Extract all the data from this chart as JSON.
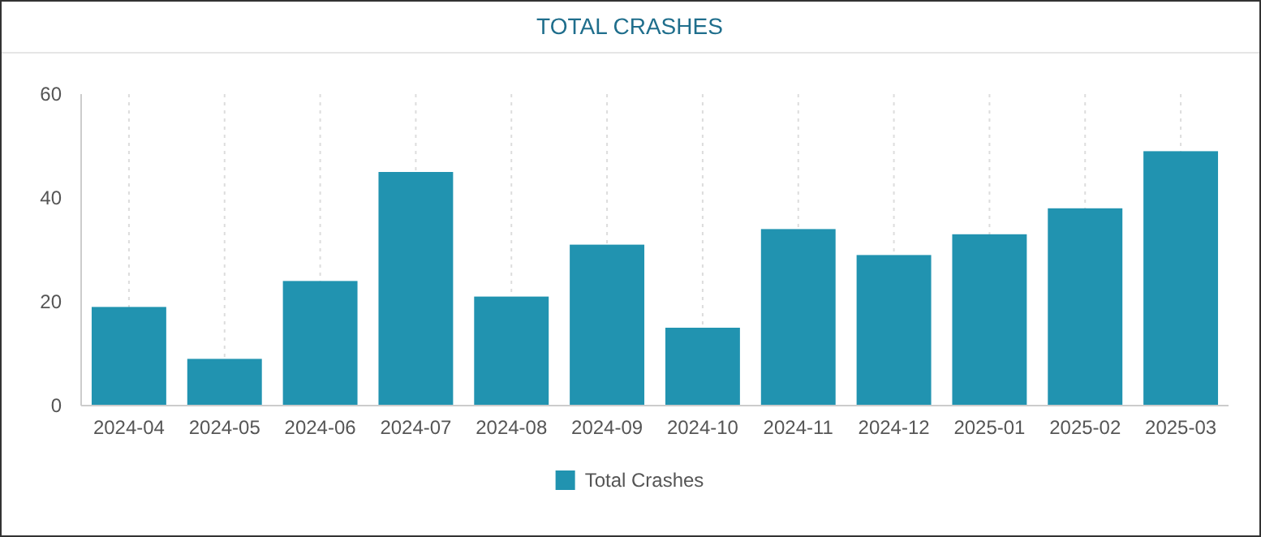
{
  "chart_data": {
    "type": "bar",
    "title": "TOTAL CRASHES",
    "categories": [
      "2024-04",
      "2024-05",
      "2024-06",
      "2024-07",
      "2024-08",
      "2024-09",
      "2024-10",
      "2024-11",
      "2024-12",
      "2025-01",
      "2025-02",
      "2025-03"
    ],
    "series": [
      {
        "name": "Total Crashes",
        "color": "#2193b0",
        "values": [
          19,
          9,
          24,
          45,
          21,
          31,
          15,
          34,
          29,
          33,
          38,
          49
        ]
      }
    ],
    "ylim": [
      0,
      60
    ],
    "yticks": [
      0,
      20,
      40,
      60
    ],
    "grid": "x",
    "legend": "bottom"
  }
}
